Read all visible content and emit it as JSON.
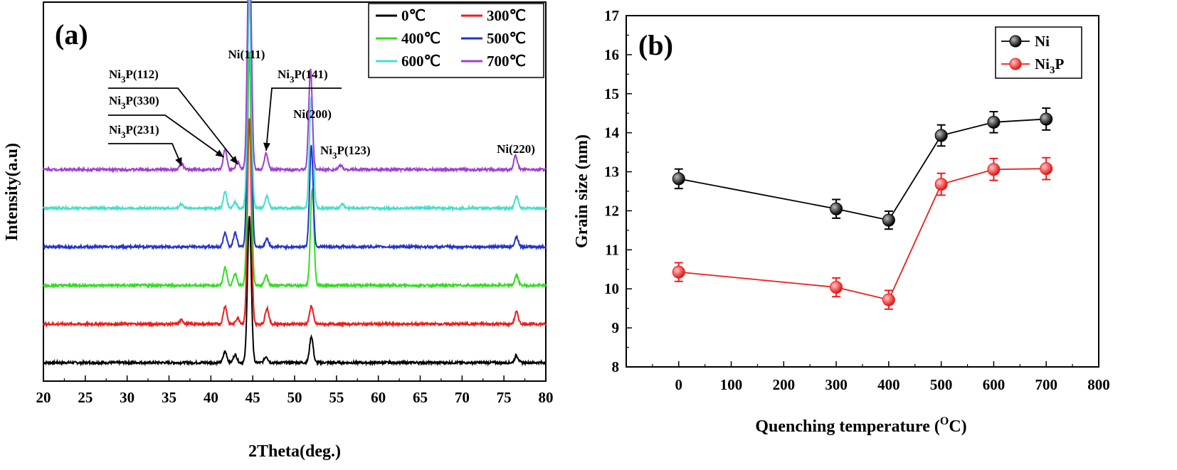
{
  "chart_data": [
    {
      "type": "line",
      "panel_label": "(a)",
      "xlabel": "2Theta(deg.)",
      "ylabel": "Intensity(a.u)",
      "xlim": [
        20,
        80
      ],
      "x_ticks": [
        20,
        25,
        30,
        35,
        40,
        45,
        50,
        55,
        60,
        65,
        70,
        75,
        80
      ],
      "legend_position": "top-right",
      "series": [
        {
          "name": "0℃",
          "color": "#000000",
          "baseline": 0.0,
          "peaks": [
            [
              41.7,
              0.055
            ],
            [
              42.9,
              0.04
            ],
            [
              44.6,
              0.72
            ],
            [
              46.6,
              0.03
            ],
            [
              52.0,
              0.13
            ],
            [
              76.5,
              0.035
            ]
          ]
        },
        {
          "name": "300℃",
          "color": "#ee1c1c",
          "baseline": 1.0,
          "peaks": [
            [
              36.5,
              0.02
            ],
            [
              41.7,
              0.09
            ],
            [
              43.2,
              0.03
            ],
            [
              44.6,
              1.02
            ],
            [
              46.7,
              0.08
            ],
            [
              52.0,
              0.09
            ],
            [
              76.5,
              0.06
            ]
          ]
        },
        {
          "name": "400℃",
          "color": "#33dd22",
          "baseline": 2.0,
          "peaks": [
            [
              41.7,
              0.09
            ],
            [
              42.9,
              0.06
            ],
            [
              44.6,
              1.15
            ],
            [
              46.6,
              0.05
            ],
            [
              52.1,
              0.48
            ],
            [
              76.5,
              0.05
            ]
          ]
        },
        {
          "name": "500℃",
          "color": "#2233cc",
          "baseline": 3.0,
          "peaks": [
            [
              41.7,
              0.07
            ],
            [
              42.9,
              0.07
            ],
            [
              44.6,
              1.3
            ],
            [
              46.7,
              0.04
            ],
            [
              52.0,
              0.5
            ],
            [
              76.5,
              0.05
            ]
          ]
        },
        {
          "name": "600℃",
          "color": "#44e0cc",
          "baseline": 4.0,
          "peaks": [
            [
              36.5,
              0.02
            ],
            [
              41.7,
              0.08
            ],
            [
              42.9,
              0.03
            ],
            [
              44.6,
              1.05
            ],
            [
              46.7,
              0.06
            ],
            [
              52.0,
              0.55
            ],
            [
              55.7,
              0.02
            ],
            [
              76.5,
              0.06
            ]
          ]
        },
        {
          "name": "700℃",
          "color": "#a040cc",
          "baseline": 5.0,
          "peaks": [
            [
              36.5,
              0.03
            ],
            [
              41.7,
              0.1
            ],
            [
              43.2,
              0.04
            ],
            [
              44.6,
              1.2
            ],
            [
              46.6,
              0.08
            ],
            [
              51.9,
              0.5
            ],
            [
              55.5,
              0.02
            ],
            [
              76.4,
              0.07
            ]
          ]
        }
      ],
      "annotations": [
        {
          "main": "Ni",
          "sub": "3",
          "rest": "P(112)",
          "x": 43.2
        },
        {
          "main": "Ni",
          "sub": "3",
          "rest": "P(330)",
          "x": 41.7
        },
        {
          "main": "Ni",
          "sub": "3",
          "rest": "P(231)",
          "x": 36.5
        },
        {
          "main": "Ni(111)",
          "sub": "",
          "rest": "",
          "x": 44.6
        },
        {
          "main": "Ni",
          "sub": "3",
          "rest": "P(141)",
          "x": 46.6
        },
        {
          "main": "Ni(200)",
          "sub": "",
          "rest": "",
          "x": 52.0
        },
        {
          "main": "Ni",
          "sub": "3",
          "rest": "P(123)",
          "x": 55.5
        },
        {
          "main": "Ni(220)",
          "sub": "",
          "rest": "",
          "x": 76.5
        }
      ]
    },
    {
      "type": "line",
      "panel_label": "(b)",
      "xlabel_main": "Quenching temperature (",
      "xlabel_sup": "O",
      "xlabel_end": "C)",
      "ylabel": "Grain size (nm)",
      "xlim": [
        -100,
        800
      ],
      "ylim": [
        8,
        17
      ],
      "x_ticks": [
        0,
        100,
        200,
        300,
        400,
        500,
        600,
        700,
        800
      ],
      "y_ticks": [
        8,
        9,
        10,
        11,
        12,
        13,
        14,
        15,
        16,
        17
      ],
      "legend_position": "top-right",
      "x": [
        0,
        300,
        400,
        500,
        600,
        700
      ],
      "series": [
        {
          "name_main": "Ni",
          "name_sub": "",
          "name_rest": "",
          "color": "#000000",
          "values": [
            12.82,
            12.05,
            11.76,
            13.93,
            14.27,
            14.35
          ],
          "errors": [
            0.25,
            0.24,
            0.23,
            0.27,
            0.27,
            0.28
          ]
        },
        {
          "name_main": "Ni",
          "name_sub": "3",
          "name_rest": "P",
          "color": "#ee1c1c",
          "values": [
            10.43,
            10.04,
            9.72,
            12.68,
            13.06,
            13.08
          ],
          "errors": [
            0.24,
            0.24,
            0.24,
            0.28,
            0.28,
            0.28
          ]
        }
      ]
    }
  ]
}
